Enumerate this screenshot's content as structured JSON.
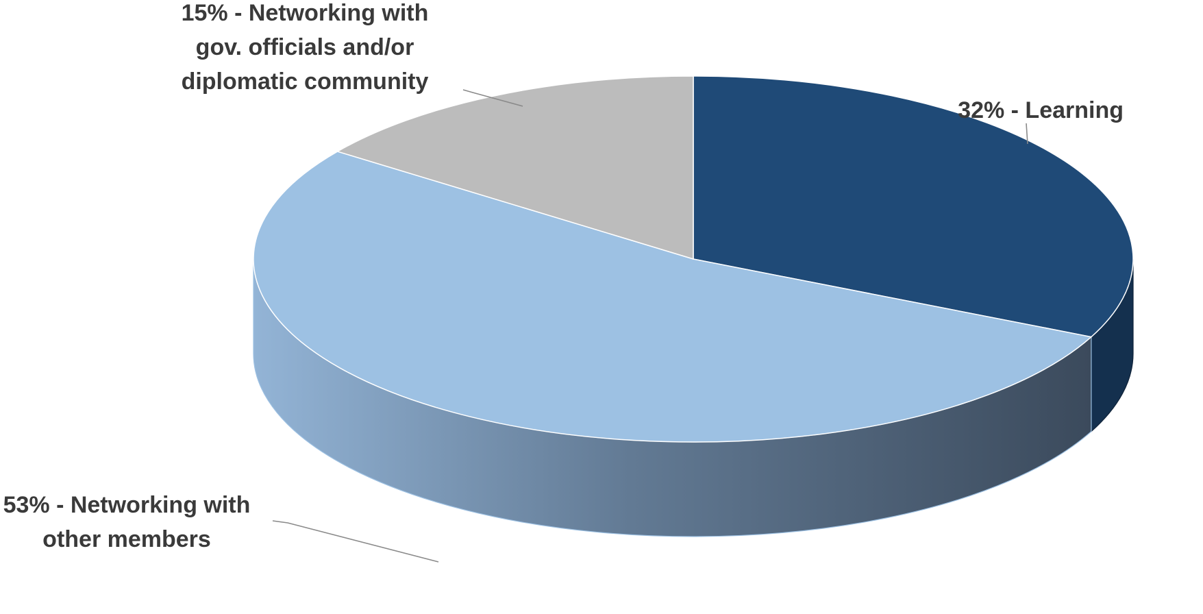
{
  "chart_data": {
    "type": "pie",
    "style": "3d",
    "title": "",
    "legend": "none",
    "slices": [
      {
        "label_lines": [
          "32% - Learning"
        ],
        "value": 32,
        "color": "#1f4a77"
      },
      {
        "label_lines": [
          "53% - Networking with",
          "other members"
        ],
        "value": 53,
        "color": "#9dc1e3"
      },
      {
        "label_lines": [
          "15% - Networking with",
          "gov. officials and/or",
          "diplomatic community"
        ],
        "value": 15,
        "color": "#bcbcbc"
      }
    ]
  }
}
